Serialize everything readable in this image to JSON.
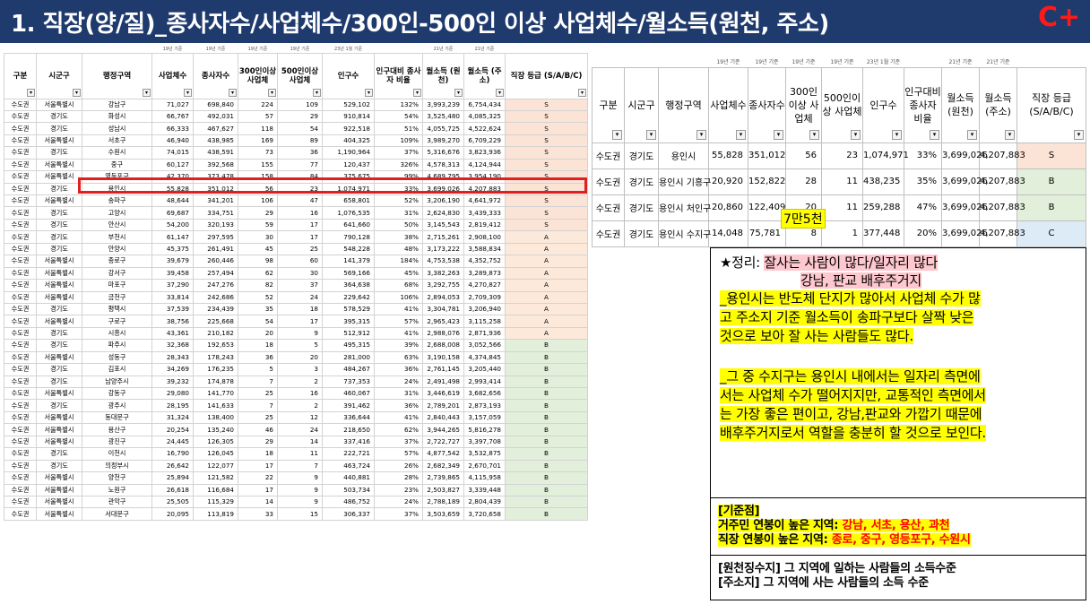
{
  "title": "1. 직장(양/질)_종사자수/사업체수/300인-500인 이상 사업체수/월소득(원천, 주소)",
  "grade_badge": "C+",
  "main_table": {
    "date_labels": [
      "",
      "",
      "",
      "19년 기준",
      "19년 기준",
      "19년 기준",
      "19년 기준",
      "23년 1월 기준",
      "",
      "21년 기준",
      "21년 기준",
      ""
    ],
    "headers": [
      "구분",
      "시군구",
      "행정구역",
      "사업체수",
      "종사자수",
      "300인이상 사업체",
      "500인이상 사업체",
      "인구수",
      "인구대비 종사자 비율",
      "월소득 (원천)",
      "월소득 (주소)",
      "직장 등급 (S/A/B/C)"
    ],
    "rows": [
      [
        "수도권",
        "서울특별시",
        "강남구",
        "71,027",
        "698,840",
        "224",
        "109",
        "529,102",
        "132%",
        "3,993,239",
        "6,754,434",
        "S"
      ],
      [
        "수도권",
        "경기도",
        "화성시",
        "66,767",
        "492,031",
        "57",
        "29",
        "910,814",
        "54%",
        "3,525,480",
        "4,085,325",
        "S"
      ],
      [
        "수도권",
        "경기도",
        "성남시",
        "66,333",
        "467,627",
        "118",
        "54",
        "922,518",
        "51%",
        "4,055,725",
        "4,522,624",
        "S"
      ],
      [
        "수도권",
        "서울특별시",
        "서초구",
        "46,940",
        "438,985",
        "169",
        "89",
        "404,325",
        "109%",
        "3,989,270",
        "6,709,229",
        "S"
      ],
      [
        "수도권",
        "경기도",
        "수원시",
        "74,015",
        "438,591",
        "73",
        "36",
        "1,190,964",
        "37%",
        "5,316,676",
        "3,823,936",
        "S"
      ],
      [
        "수도권",
        "서울특별시",
        "중구",
        "60,127",
        "392,568",
        "155",
        "77",
        "120,437",
        "326%",
        "4,578,313",
        "4,124,944",
        "S"
      ],
      [
        "수도권",
        "서울특별시",
        "영등포구",
        "42,370",
        "373,478",
        "158",
        "84",
        "375,675",
        "99%",
        "4,689,795",
        "3,954,190",
        "S"
      ],
      [
        "수도권",
        "경기도",
        "용인시",
        "55,828",
        "351,012",
        "56",
        "23",
        "1,074,971",
        "33%",
        "3,699,026",
        "4,207,883",
        "S"
      ],
      [
        "수도권",
        "서울특별시",
        "송파구",
        "48,644",
        "341,201",
        "106",
        "47",
        "658,801",
        "52%",
        "3,206,190",
        "4,641,972",
        "S"
      ],
      [
        "수도권",
        "경기도",
        "고양시",
        "69,687",
        "334,751",
        "29",
        "16",
        "1,076,535",
        "31%",
        "2,624,830",
        "3,439,333",
        "S"
      ],
      [
        "수도권",
        "경기도",
        "안산시",
        "54,200",
        "320,193",
        "59",
        "17",
        "641,660",
        "50%",
        "3,145,543",
        "2,819,412",
        "S"
      ],
      [
        "수도권",
        "경기도",
        "부천시",
        "61,147",
        "297,595",
        "30",
        "17",
        "790,128",
        "38%",
        "2,715,261",
        "2,908,100",
        "A"
      ],
      [
        "수도권",
        "경기도",
        "안양시",
        "45,375",
        "261,491",
        "45",
        "25",
        "548,228",
        "48%",
        "3,173,222",
        "3,588,834",
        "A"
      ],
      [
        "수도권",
        "서울특별시",
        "종로구",
        "39,679",
        "260,446",
        "98",
        "60",
        "141,379",
        "184%",
        "4,753,538",
        "4,352,752",
        "A"
      ],
      [
        "수도권",
        "서울특별시",
        "강서구",
        "39,458",
        "257,494",
        "62",
        "30",
        "569,166",
        "45%",
        "3,382,263",
        "3,289,873",
        "A"
      ],
      [
        "수도권",
        "서울특별시",
        "마포구",
        "37,290",
        "247,276",
        "82",
        "37",
        "364,638",
        "68%",
        "3,292,755",
        "4,270,827",
        "A"
      ],
      [
        "수도권",
        "서울특별시",
        "금천구",
        "33,814",
        "242,686",
        "52",
        "24",
        "229,642",
        "106%",
        "2,894,053",
        "2,709,309",
        "A"
      ],
      [
        "수도권",
        "경기도",
        "평택시",
        "37,539",
        "234,439",
        "35",
        "18",
        "578,529",
        "41%",
        "3,304,781",
        "3,206,940",
        "A"
      ],
      [
        "수도권",
        "서울특별시",
        "구로구",
        "38,756",
        "225,668",
        "54",
        "17",
        "395,315",
        "57%",
        "2,965,423",
        "3,115,258",
        "A"
      ],
      [
        "수도권",
        "경기도",
        "시흥시",
        "43,361",
        "210,182",
        "20",
        "9",
        "512,912",
        "41%",
        "2,988,076",
        "2,871,936",
        "A"
      ],
      [
        "수도권",
        "경기도",
        "파주시",
        "32,368",
        "192,653",
        "18",
        "5",
        "495,315",
        "39%",
        "2,688,008",
        "3,052,566",
        "B"
      ],
      [
        "수도권",
        "서울특별시",
        "성동구",
        "28,343",
        "178,243",
        "36",
        "20",
        "281,000",
        "63%",
        "3,190,158",
        "4,374,845",
        "B"
      ],
      [
        "수도권",
        "경기도",
        "김포시",
        "34,269",
        "176,235",
        "5",
        "3",
        "484,267",
        "36%",
        "2,761,145",
        "3,205,440",
        "B"
      ],
      [
        "수도권",
        "경기도",
        "남양주시",
        "39,232",
        "174,878",
        "7",
        "2",
        "737,353",
        "24%",
        "2,491,498",
        "2,993,414",
        "B"
      ],
      [
        "수도권",
        "서울특별시",
        "강동구",
        "29,080",
        "141,770",
        "25",
        "16",
        "460,067",
        "31%",
        "3,446,619",
        "3,682,656",
        "B"
      ],
      [
        "수도권",
        "경기도",
        "광주시",
        "28,195",
        "141,633",
        "7",
        "2",
        "391,462",
        "36%",
        "2,789,201",
        "2,873,193",
        "B"
      ],
      [
        "수도권",
        "서울특별시",
        "동대문구",
        "31,324",
        "138,400",
        "25",
        "12",
        "336,644",
        "41%",
        "2,840,443",
        "3,157,059",
        "B"
      ],
      [
        "수도권",
        "서울특별시",
        "용산구",
        "20,254",
        "135,240",
        "46",
        "24",
        "218,650",
        "62%",
        "3,944,265",
        "5,816,278",
        "B"
      ],
      [
        "수도권",
        "서울특별시",
        "광진구",
        "24,445",
        "126,305",
        "29",
        "14",
        "337,416",
        "37%",
        "2,722,727",
        "3,397,708",
        "B"
      ],
      [
        "수도권",
        "경기도",
        "이천시",
        "16,790",
        "126,045",
        "18",
        "11",
        "222,721",
        "57%",
        "4,877,542",
        "3,532,875",
        "B"
      ],
      [
        "수도권",
        "경기도",
        "의정부시",
        "26,642",
        "122,077",
        "17",
        "7",
        "463,724",
        "26%",
        "2,682,349",
        "2,670,701",
        "B"
      ],
      [
        "수도권",
        "서울특별시",
        "양천구",
        "25,894",
        "121,582",
        "22",
        "9",
        "440,881",
        "28%",
        "2,739,865",
        "4,115,958",
        "B"
      ],
      [
        "수도권",
        "서울특별시",
        "노원구",
        "26,618",
        "116,684",
        "17",
        "9",
        "503,734",
        "23%",
        "2,503,827",
        "3,339,448",
        "B"
      ],
      [
        "수도권",
        "서울특별시",
        "관악구",
        "25,505",
        "115,329",
        "14",
        "9",
        "486,752",
        "24%",
        "2,788,189",
        "2,804,439",
        "B"
      ],
      [
        "수도권",
        "서울특별시",
        "서대문구",
        "20,095",
        "113,819",
        "33",
        "15",
        "306,337",
        "37%",
        "3,503,659",
        "3,720,658",
        "B"
      ]
    ]
  },
  "side_table": {
    "date_labels": [
      "",
      "",
      "",
      "19년 기준",
      "19년 기준",
      "19년 기준",
      "19년 기준",
      "23년 1월 기준",
      "",
      "21년 기준",
      "21년 기준",
      ""
    ],
    "headers": [
      "구분",
      "시군구",
      "행정구역",
      "사업체수",
      "종사자수",
      "300인이상 사업체",
      "500인이상 사업체",
      "인구수",
      "인구대비 종사자 비율",
      "월소득 (원천)",
      "월소득 (주소)",
      "직장 등급 (S/A/B/C)"
    ],
    "rows": [
      [
        "수도권",
        "경기도",
        "용인시",
        "55,828",
        "351,012",
        "56",
        "23",
        "1,074,971",
        "33%",
        "3,699,026",
        "4,207,883",
        "S"
      ],
      [
        "수도권",
        "경기도",
        "용인시 기흥구",
        "20,920",
        "152,822",
        "28",
        "11",
        "438,235",
        "35%",
        "3,699,026",
        "4,207,883",
        "B"
      ],
      [
        "수도권",
        "경기도",
        "용인시 처인구",
        "20,860",
        "122,409",
        "20",
        "11",
        "259,288",
        "47%",
        "3,699,026",
        "4,207,883",
        "B"
      ],
      [
        "수도권",
        "경기도",
        "용인시 수지구",
        "14,048",
        "75,781",
        "8",
        "1",
        "377,448",
        "20%",
        "3,699,026",
        "4,207,883",
        "C"
      ]
    ],
    "sticky_note": "7만5천"
  },
  "summary": {
    "heading_prefix": "★정리: ",
    "heading_line1": "잘사는 사람이 많다/일자리 많다",
    "heading_line2": "강남, 판교 배후주거지",
    "para1": [
      "_용인시는 반도체 단지가 많아서 사업체 수가 많",
      "고 주소지 기준 월소득이 송파구보다 살짝 낮은",
      "것으로 보아 잘 사는 사람들도 많다."
    ],
    "para2": [
      "_그 중 수지구는 용인시 내에서는 일자리 측면에",
      "서는 사업체 수가 떨어지지만, 교통적인 측면에서",
      "는 가장 좋은 편이고, 강남,판교와 가깝기 때문에",
      "배후주거지로서 역할을 충분히 할 것으로 보인다."
    ],
    "criteria_title": "[기준점]",
    "criteria1_label": "거주민 연봉이 높은 지역: ",
    "criteria1_value": "강남, 서초, 용산, 과천",
    "criteria2_label": "직장 연봉이 높은 지역: ",
    "criteria2_value": "종로, 중구, 영등포구, 수원시",
    "note1": "[원천징수지] 그 지역에 일하는 사람들의 소득수준",
    "note2": "[주소지] 그 지역에 사는 사람들의 소득 수준"
  },
  "colors": {
    "title_bar": "#1f3a6d",
    "grade_badge": "#ff1a1a",
    "grade_S": "#fbe3d6",
    "grade_A": "#fce9d9",
    "grade_B": "#e2efda",
    "grade_C": "#ddebf7",
    "highlight_row_border": "#e02020"
  }
}
